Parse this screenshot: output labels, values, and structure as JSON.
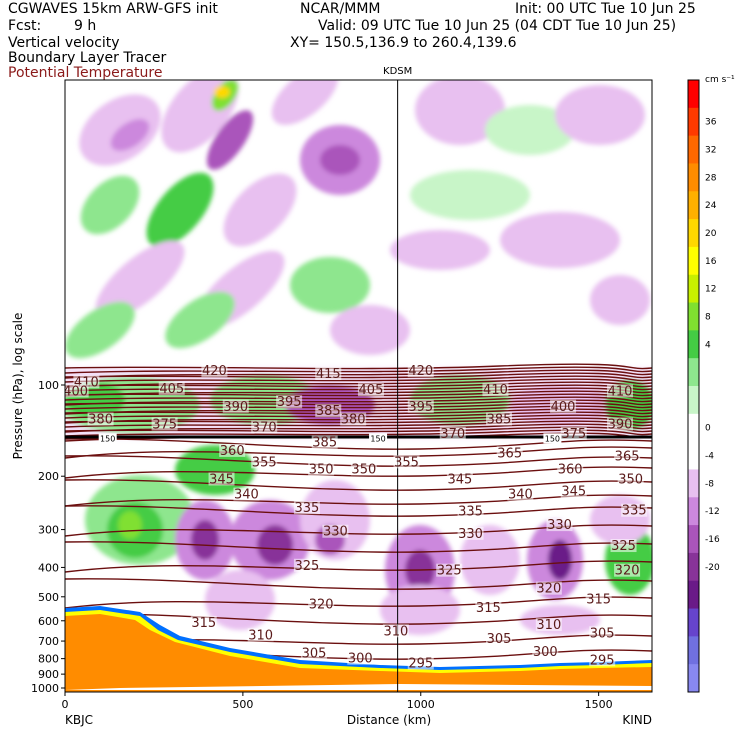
{
  "header": {
    "model": "CGWAVES 15km ARW-GFS init",
    "org": "NCAR/MMM",
    "init": "Init: 00 UTC Tue 10 Jun 25",
    "fcst_label": "Fcst:",
    "fcst_value": "9 h",
    "valid": "Valid: 09 UTC Tue 10 Jun 25 (04 CDT Tue 10 Jun 25)",
    "field1": "Vertical velocity",
    "xy": "XY= 150.5,136.9 to 260.4,139.6",
    "field2": "Boundary Layer Tracer",
    "field3": "Potential Temperature"
  },
  "colors": {
    "theta_line": "#6b0f0f",
    "terrain": "#ff8c00",
    "positive_w": "#66dd55",
    "negative_w": "#a040b0"
  },
  "chart_data": {
    "type": "heatmap",
    "title": "",
    "station_label": "KDSM",
    "xlabel": "Distance (km)",
    "ylabel": "Pressure (hPa), log scale",
    "x_ticks": [
      "0",
      "500",
      "1000",
      "1500"
    ],
    "x_tick_values": [
      0,
      500,
      1000,
      1500
    ],
    "xlim": [
      0,
      1650
    ],
    "y_ticks": [
      "100",
      "200",
      "300",
      "400",
      "500",
      "600",
      "700",
      "800",
      "900",
      "1000"
    ],
    "y_tick_values": [
      100,
      200,
      300,
      400,
      500,
      600,
      700,
      800,
      900,
      1000
    ],
    "y_scale": "log",
    "left_end_label": "KBJC",
    "right_end_label": "KIND",
    "vertical_marker_km": 935,
    "colorbar": {
      "unit": "cm s⁻¹",
      "levels": [
        "36",
        "32",
        "28",
        "24",
        "20",
        "16",
        "12",
        "8",
        "4",
        "0",
        "-4",
        "-8",
        "-12",
        "-16",
        "-20"
      ],
      "colors": [
        "#ff0000",
        "#ff3a00",
        "#ff6800",
        "#ff8c00",
        "#ffb000",
        "#ffd800",
        "#ffff00",
        "#c8f000",
        "#80e030",
        "#44cc44",
        "#8ee68e",
        "#c8f5c8",
        "#ffffff",
        "#ffffff",
        "#e8c0f0",
        "#cc88dd",
        "#aa55bb",
        "#883399",
        "#6a1a88",
        "#6644cc",
        "#7070e0",
        "#8888f0"
      ]
    },
    "theta_labels": [
      {
        "text": "410",
        "x": 60,
        "p": 98
      },
      {
        "text": "420",
        "x": 420,
        "p": 90
      },
      {
        "text": "415",
        "x": 740,
        "p": 92
      },
      {
        "text": "420",
        "x": 1000,
        "p": 90
      },
      {
        "text": "400",
        "x": 30,
        "p": 105
      },
      {
        "text": "405",
        "x": 300,
        "p": 103
      },
      {
        "text": "405",
        "x": 860,
        "p": 104
      },
      {
        "text": "410",
        "x": 1210,
        "p": 104
      },
      {
        "text": "410",
        "x": 1560,
        "p": 105
      },
      {
        "text": "390",
        "x": 480,
        "p": 118
      },
      {
        "text": "395",
        "x": 630,
        "p": 114
      },
      {
        "text": "385",
        "x": 740,
        "p": 122
      },
      {
        "text": "395",
        "x": 1000,
        "p": 118
      },
      {
        "text": "400",
        "x": 1400,
        "p": 118
      },
      {
        "text": "380",
        "x": 100,
        "p": 130
      },
      {
        "text": "375",
        "x": 280,
        "p": 135
      },
      {
        "text": "370",
        "x": 560,
        "p": 138
      },
      {
        "text": "380",
        "x": 810,
        "p": 130
      },
      {
        "text": "385",
        "x": 1220,
        "p": 130
      },
      {
        "text": "390",
        "x": 1560,
        "p": 135
      },
      {
        "text": "370",
        "x": 1090,
        "p": 145
      },
      {
        "text": "375",
        "x": 1430,
        "p": 145
      },
      {
        "text": "385",
        "x": 730,
        "p": 155
      },
      {
        "text": "360",
        "x": 470,
        "p": 165
      },
      {
        "text": "365",
        "x": 1250,
        "p": 168
      },
      {
        "text": "365",
        "x": 1580,
        "p": 172
      },
      {
        "text": "355",
        "x": 560,
        "p": 180
      },
      {
        "text": "350",
        "x": 720,
        "p": 190
      },
      {
        "text": "350",
        "x": 840,
        "p": 190
      },
      {
        "text": "355",
        "x": 960,
        "p": 180
      },
      {
        "text": "360",
        "x": 1420,
        "p": 190
      },
      {
        "text": "345",
        "x": 440,
        "p": 205
      },
      {
        "text": "345",
        "x": 1110,
        "p": 205
      },
      {
        "text": "350",
        "x": 1590,
        "p": 205
      },
      {
        "text": "340",
        "x": 510,
        "p": 230
      },
      {
        "text": "340",
        "x": 1280,
        "p": 230
      },
      {
        "text": "345",
        "x": 1430,
        "p": 225
      },
      {
        "text": "335",
        "x": 680,
        "p": 255
      },
      {
        "text": "335",
        "x": 1140,
        "p": 262
      },
      {
        "text": "335",
        "x": 1600,
        "p": 260
      },
      {
        "text": "330",
        "x": 1390,
        "p": 290
      },
      {
        "text": "330",
        "x": 760,
        "p": 305
      },
      {
        "text": "330",
        "x": 1140,
        "p": 310
      },
      {
        "text": "325",
        "x": 1570,
        "p": 340
      },
      {
        "text": "325",
        "x": 680,
        "p": 395
      },
      {
        "text": "325",
        "x": 1080,
        "p": 410
      },
      {
        "text": "320",
        "x": 1580,
        "p": 410
      },
      {
        "text": "320",
        "x": 1360,
        "p": 470
      },
      {
        "text": "320",
        "x": 720,
        "p": 530
      },
      {
        "text": "315",
        "x": 1500,
        "p": 510
      },
      {
        "text": "315",
        "x": 1190,
        "p": 545
      },
      {
        "text": "315",
        "x": 390,
        "p": 610
      },
      {
        "text": "310",
        "x": 1360,
        "p": 620
      },
      {
        "text": "310",
        "x": 930,
        "p": 650
      },
      {
        "text": "310",
        "x": 550,
        "p": 670
      },
      {
        "text": "305",
        "x": 1510,
        "p": 660
      },
      {
        "text": "305",
        "x": 1220,
        "p": 690
      },
      {
        "text": "305",
        "x": 700,
        "p": 770
      },
      {
        "text": "300",
        "x": 1350,
        "p": 760
      },
      {
        "text": "300",
        "x": 830,
        "p": 800
      },
      {
        "text": "295",
        "x": 1510,
        "p": 810
      },
      {
        "text": "295",
        "x": 1000,
        "p": 830
      }
    ],
    "tropopause_labels": [
      {
        "text": "150",
        "x": 120,
        "p": 150
      },
      {
        "text": "150",
        "x": 880,
        "p": 150
      },
      {
        "text": "150",
        "x": 1370,
        "p": 150
      }
    ]
  }
}
